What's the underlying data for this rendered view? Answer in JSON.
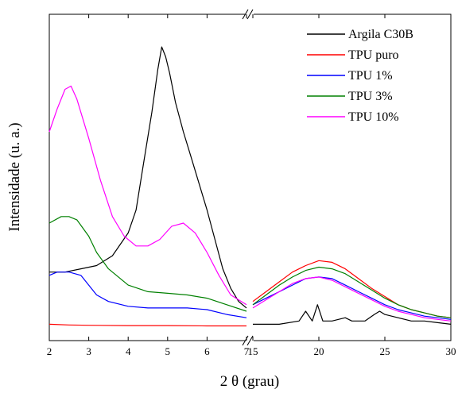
{
  "chart_data": {
    "type": "line",
    "xlabel": "2 θ (grau)",
    "ylabel": "Intensidade (u. a.)",
    "y_ticks_shown": false,
    "grid": false,
    "legend_position": "top-right",
    "axis_break": {
      "left_segment": [
        2,
        7
      ],
      "right_segment": [
        15,
        30
      ]
    },
    "x_ticks_left": [
      "2",
      "3",
      "4",
      "5",
      "6",
      "7"
    ],
    "x_ticks_right": [
      "15",
      "20",
      "25",
      "30"
    ],
    "ylim": [
      0,
      100
    ],
    "series": [
      {
        "name": "Argila C30B",
        "color": "#000000",
        "left": [
          [
            2.0,
            21
          ],
          [
            2.4,
            21
          ],
          [
            2.8,
            22
          ],
          [
            3.2,
            23
          ],
          [
            3.6,
            26
          ],
          [
            4.0,
            33
          ],
          [
            4.2,
            40
          ],
          [
            4.4,
            55
          ],
          [
            4.6,
            70
          ],
          [
            4.75,
            83
          ],
          [
            4.85,
            90
          ],
          [
            4.95,
            87
          ],
          [
            5.05,
            82
          ],
          [
            5.2,
            73
          ],
          [
            5.4,
            64
          ],
          [
            5.6,
            56
          ],
          [
            5.8,
            48
          ],
          [
            6.0,
            40
          ],
          [
            6.2,
            31
          ],
          [
            6.4,
            22
          ],
          [
            6.6,
            16
          ],
          [
            6.8,
            12
          ],
          [
            7.0,
            10
          ]
        ],
        "right": [
          [
            15,
            5
          ],
          [
            17,
            5
          ],
          [
            18.5,
            6
          ],
          [
            19,
            9
          ],
          [
            19.5,
            6
          ],
          [
            19.9,
            11
          ],
          [
            20.3,
            6
          ],
          [
            21,
            6
          ],
          [
            22,
            7
          ],
          [
            22.5,
            6
          ],
          [
            23.5,
            6
          ],
          [
            24.2,
            8
          ],
          [
            24.6,
            9
          ],
          [
            25,
            8
          ],
          [
            26,
            7
          ],
          [
            27,
            6
          ],
          [
            28,
            6
          ],
          [
            29,
            5.5
          ],
          [
            30,
            5
          ]
        ]
      },
      {
        "name": "TPU puro",
        "color": "#ff0000",
        "left": [
          [
            2.0,
            5
          ],
          [
            2.5,
            4.8
          ],
          [
            3,
            4.7
          ],
          [
            4,
            4.6
          ],
          [
            5,
            4.6
          ],
          [
            6,
            4.5
          ],
          [
            7,
            4.5
          ]
        ],
        "right": [
          [
            15,
            12
          ],
          [
            16,
            15
          ],
          [
            17,
            18
          ],
          [
            18,
            21
          ],
          [
            19,
            23
          ],
          [
            20,
            24.5
          ],
          [
            21,
            24
          ],
          [
            22,
            22
          ],
          [
            23,
            19
          ],
          [
            24,
            16
          ],
          [
            25,
            13.5
          ],
          [
            26,
            11
          ],
          [
            27,
            9.5
          ],
          [
            28,
            8.5
          ],
          [
            29,
            7.5
          ],
          [
            30,
            7
          ]
        ]
      },
      {
        "name": "TPU 1%",
        "color": "#0000ff",
        "left": [
          [
            2.0,
            20
          ],
          [
            2.2,
            21
          ],
          [
            2.5,
            21
          ],
          [
            2.8,
            20
          ],
          [
            3.0,
            17
          ],
          [
            3.2,
            14
          ],
          [
            3.5,
            12
          ],
          [
            4.0,
            10.5
          ],
          [
            4.5,
            10
          ],
          [
            5.0,
            10
          ],
          [
            5.5,
            10
          ],
          [
            6.0,
            9.5
          ],
          [
            6.5,
            8
          ],
          [
            7.0,
            7
          ]
        ],
        "right": [
          [
            15,
            11
          ],
          [
            16,
            13
          ],
          [
            17,
            15
          ],
          [
            18,
            17
          ],
          [
            19,
            19
          ],
          [
            20,
            19.5
          ],
          [
            21,
            19
          ],
          [
            22,
            17
          ],
          [
            23,
            15
          ],
          [
            24,
            13
          ],
          [
            25,
            11
          ],
          [
            26,
            9.5
          ],
          [
            27,
            8.5
          ],
          [
            28,
            7.5
          ],
          [
            29,
            7
          ],
          [
            30,
            6.5
          ]
        ]
      },
      {
        "name": "TPU 3%",
        "color": "#008000",
        "left": [
          [
            2.0,
            36
          ],
          [
            2.3,
            38
          ],
          [
            2.5,
            38
          ],
          [
            2.7,
            37
          ],
          [
            3.0,
            32
          ],
          [
            3.2,
            27
          ],
          [
            3.5,
            22
          ],
          [
            4.0,
            17
          ],
          [
            4.5,
            15
          ],
          [
            5.0,
            14.5
          ],
          [
            5.5,
            14
          ],
          [
            6.0,
            13
          ],
          [
            6.5,
            11
          ],
          [
            7.0,
            9
          ]
        ],
        "right": [
          [
            15,
            11
          ],
          [
            16,
            14
          ],
          [
            17,
            17
          ],
          [
            18,
            19.5
          ],
          [
            19,
            21.5
          ],
          [
            20,
            22.5
          ],
          [
            21,
            22
          ],
          [
            22,
            20.5
          ],
          [
            23,
            18
          ],
          [
            24,
            15.5
          ],
          [
            25,
            13
          ],
          [
            26,
            11
          ],
          [
            27,
            9.5
          ],
          [
            28,
            8.5
          ],
          [
            29,
            7.5
          ],
          [
            30,
            7
          ]
        ]
      },
      {
        "name": "TPU 10%",
        "color": "#ff00ff",
        "left": [
          [
            2.0,
            64
          ],
          [
            2.2,
            71
          ],
          [
            2.4,
            77
          ],
          [
            2.55,
            78
          ],
          [
            2.7,
            74
          ],
          [
            3.0,
            62
          ],
          [
            3.3,
            49
          ],
          [
            3.6,
            38
          ],
          [
            3.9,
            32
          ],
          [
            4.2,
            29
          ],
          [
            4.5,
            29
          ],
          [
            4.8,
            31
          ],
          [
            5.1,
            35
          ],
          [
            5.4,
            36
          ],
          [
            5.7,
            33
          ],
          [
            6.0,
            27
          ],
          [
            6.3,
            20
          ],
          [
            6.6,
            14
          ],
          [
            7.0,
            11
          ]
        ],
        "right": [
          [
            15,
            10
          ],
          [
            16,
            12.5
          ],
          [
            17,
            15
          ],
          [
            18,
            17.5
          ],
          [
            19,
            19
          ],
          [
            20,
            19.5
          ],
          [
            21,
            18.5
          ],
          [
            22,
            16.5
          ],
          [
            23,
            14.5
          ],
          [
            24,
            12.5
          ],
          [
            25,
            10.5
          ],
          [
            26,
            9
          ],
          [
            27,
            8
          ],
          [
            28,
            7
          ],
          [
            29,
            6.5
          ],
          [
            30,
            6
          ]
        ]
      }
    ]
  }
}
